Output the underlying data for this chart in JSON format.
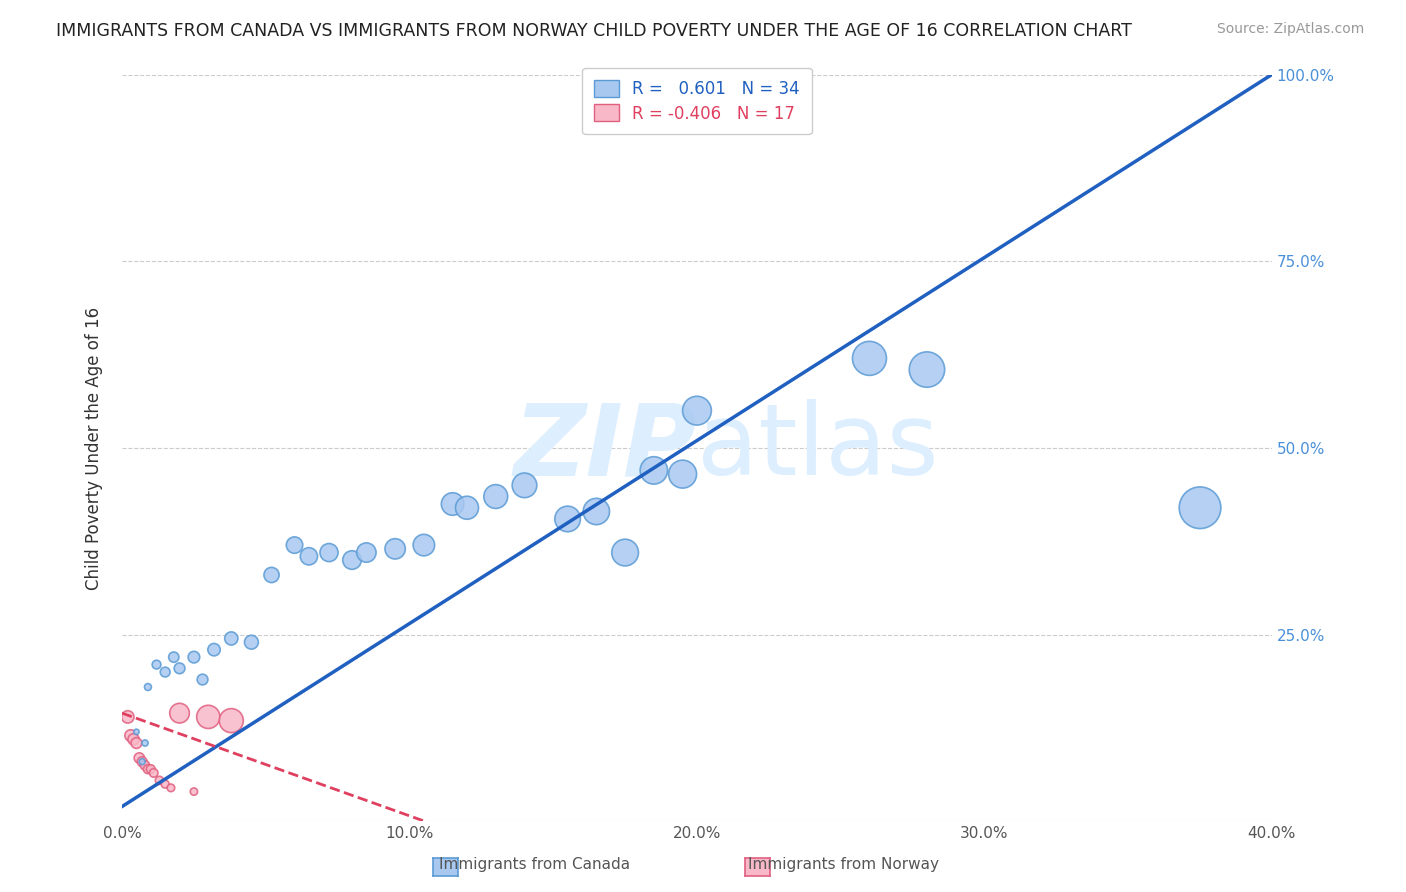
{
  "title": "IMMIGRANTS FROM CANADA VS IMMIGRANTS FROM NORWAY CHILD POVERTY UNDER THE AGE OF 16 CORRELATION CHART",
  "source": "Source: ZipAtlas.com",
  "ylabel": "Child Poverty Under the Age of 16",
  "x_tick_labels": [
    "0.0%",
    "10.0%",
    "20.0%",
    "30.0%",
    "40.0%"
  ],
  "x_tick_values": [
    0.0,
    10.0,
    20.0,
    30.0,
    40.0
  ],
  "y_tick_labels": [
    "",
    "25.0%",
    "50.0%",
    "75.0%",
    "100.0%"
  ],
  "y_tick_values": [
    0.0,
    25.0,
    50.0,
    75.0,
    100.0
  ],
  "xlim": [
    0.0,
    40.0
  ],
  "ylim": [
    0.0,
    100.0
  ],
  "canada_color": "#a8c8f0",
  "canada_edge_color": "#5b9bd5",
  "norway_color": "#f9b8c8",
  "norway_edge_color": "#e06080",
  "regression_canada_color": "#2060c0",
  "regression_norway_color": "#e04060",
  "R_canada": 0.601,
  "N_canada": 34,
  "R_norway": -0.406,
  "N_norway": 17,
  "legend_label_canada": "Immigrants from Canada",
  "legend_label_norway": "Immigrants from Norway",
  "canada_regression_x0": 0.0,
  "canada_regression_y0": 2.0,
  "canada_regression_x1": 40.0,
  "canada_regression_y1": 100.0,
  "norway_regression_x0": 0.0,
  "norway_regression_y0": 14.5,
  "norway_regression_x1": 12.0,
  "norway_regression_y1": -2.0,
  "canada_x": [
    0.5,
    0.7,
    0.8,
    0.9,
    1.2,
    1.5,
    1.8,
    2.0,
    2.5,
    2.8,
    3.2,
    3.8,
    4.5,
    5.2,
    6.0,
    6.5,
    7.2,
    8.0,
    8.5,
    9.5,
    10.5,
    11.5,
    12.0,
    13.0,
    14.0,
    15.5,
    16.5,
    17.5,
    18.5,
    19.5,
    20.0,
    26.0,
    28.0,
    37.5
  ],
  "canada_y": [
    12.0,
    8.0,
    10.5,
    18.0,
    21.0,
    20.0,
    22.0,
    20.5,
    22.0,
    19.0,
    23.0,
    24.5,
    24.0,
    33.0,
    37.0,
    35.5,
    36.0,
    35.0,
    36.0,
    36.5,
    37.0,
    42.5,
    42.0,
    43.5,
    45.0,
    40.5,
    41.5,
    36.0,
    47.0,
    46.5,
    55.0,
    62.0,
    60.5,
    42.0
  ],
  "canada_size": [
    15,
    18,
    20,
    25,
    40,
    50,
    55,
    60,
    70,
    60,
    80,
    90,
    100,
    120,
    140,
    155,
    170,
    180,
    195,
    215,
    240,
    265,
    275,
    295,
    315,
    340,
    360,
    370,
    390,
    405,
    430,
    600,
    650,
    900
  ],
  "norway_x": [
    0.2,
    0.3,
    0.4,
    0.5,
    0.6,
    0.7,
    0.8,
    0.9,
    1.0,
    1.1,
    1.3,
    1.5,
    1.7,
    2.0,
    2.5,
    3.0,
    3.8
  ],
  "norway_y": [
    14.0,
    11.5,
    11.0,
    10.5,
    8.5,
    8.0,
    7.5,
    7.0,
    7.0,
    6.5,
    5.5,
    5.0,
    4.5,
    14.5,
    4.0,
    14.0,
    13.5
  ],
  "norway_size": [
    80,
    70,
    65,
    60,
    55,
    50,
    45,
    42,
    40,
    38,
    35,
    32,
    30,
    200,
    28,
    280,
    300
  ],
  "background_color": "#ffffff",
  "grid_color": "#cccccc",
  "watermark_zip": "ZIP",
  "watermark_atlas": "atlas",
  "watermark_color": "#ddeeff"
}
